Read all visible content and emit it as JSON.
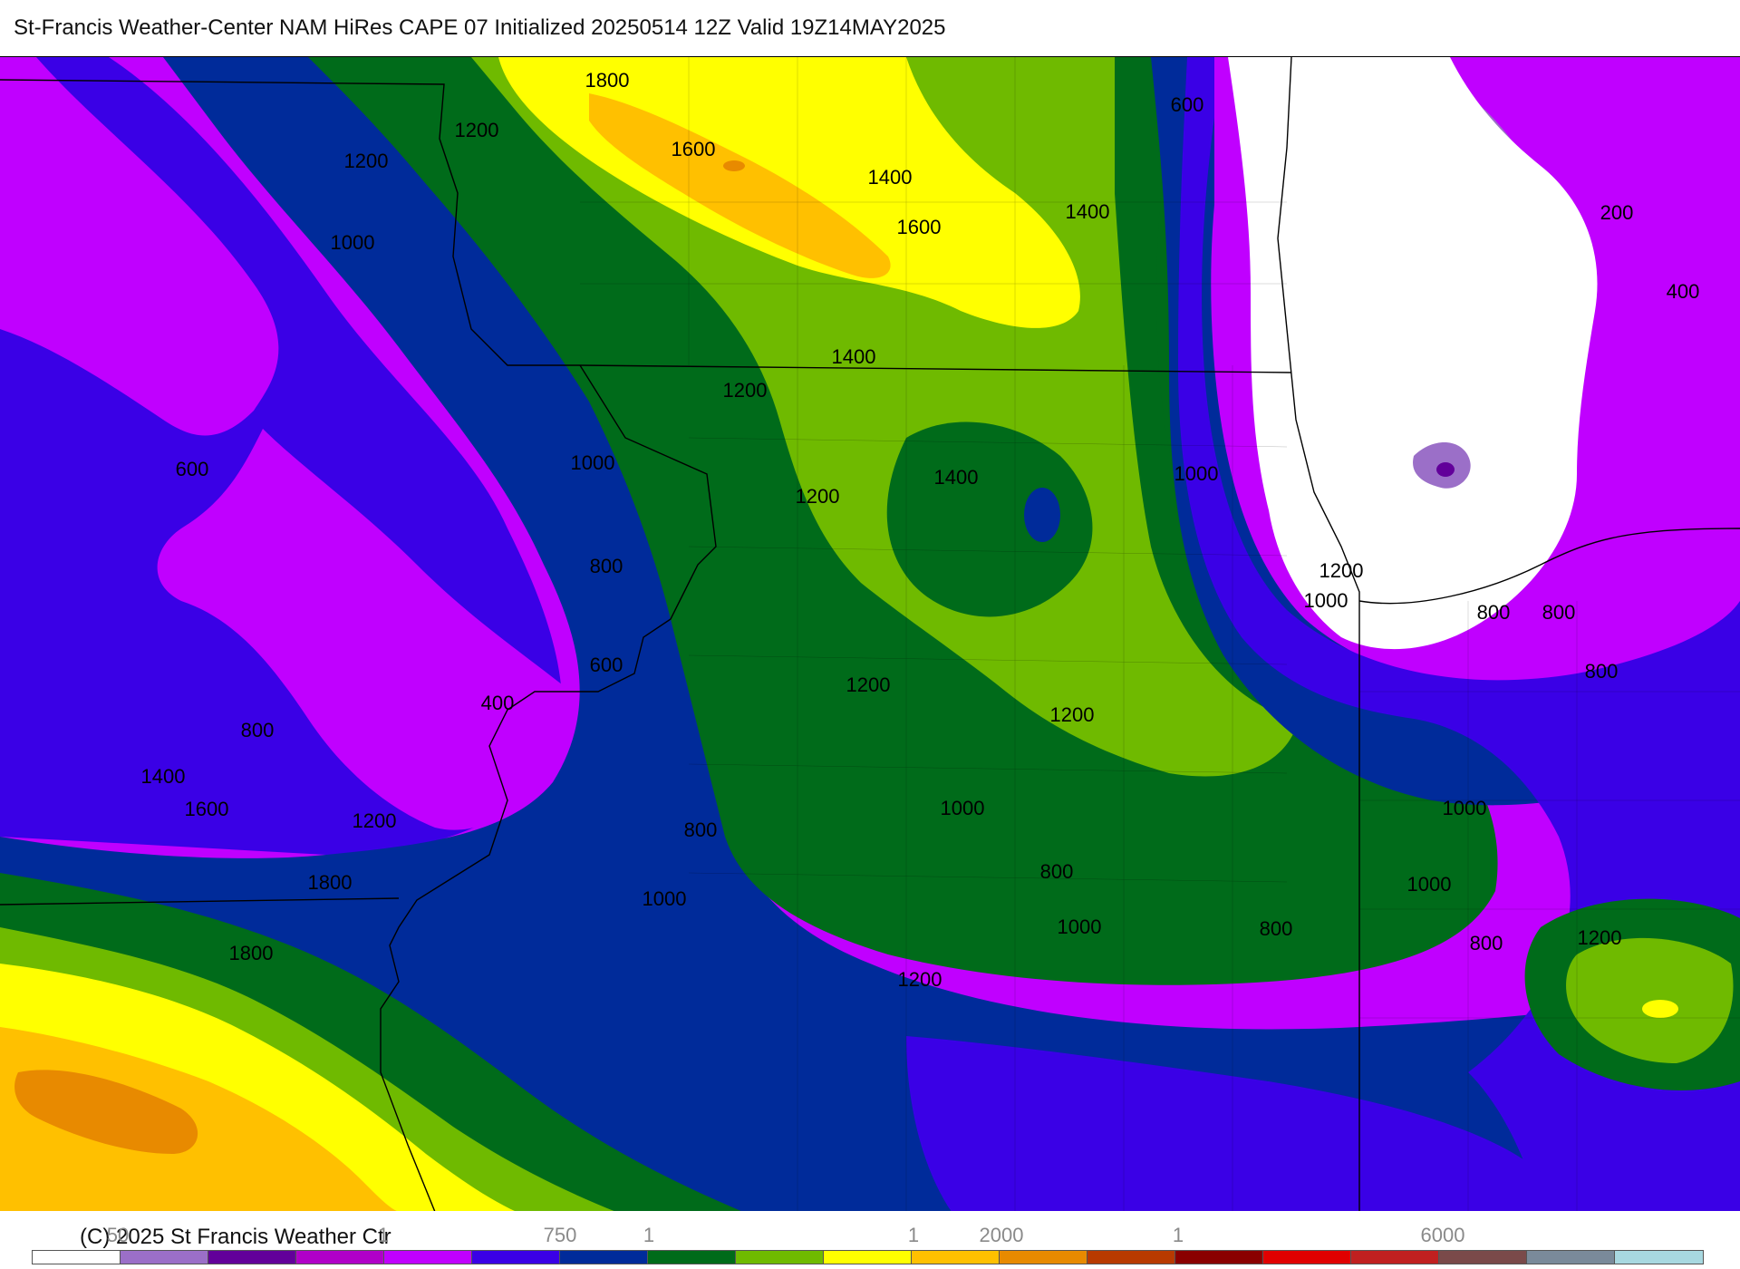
{
  "header": {
    "title": "St-Francis Weather-Center NAM HiRes CAPE  07 Initialized 20250514 12Z Valid 19Z14MAY2025"
  },
  "footer": {
    "copyright": "(C) 2025 St Francis Weather Ctr",
    "tick_labels": [
      "50",
      "1",
      "750",
      "1",
      "1",
      "2000",
      "1",
      "6000"
    ]
  },
  "legend": {
    "colors": [
      "#ffffff",
      "#9b6fc8",
      "#62009a",
      "#b000c8",
      "#c000ff",
      "#3a00e6",
      "#002b9a",
      "#006b1a",
      "#6fba00",
      "#ffff00",
      "#ffc000",
      "#e88a00",
      "#b83a00",
      "#8a0000",
      "#e00000",
      "#c02020",
      "#7a4a4a",
      "#7a8a9a",
      "#a8d8e0"
    ]
  },
  "map": {
    "contour_labels": [
      "1800",
      "1600",
      "1400",
      "1600",
      "1400",
      "600",
      "1200",
      "1200",
      "1000",
      "1400",
      "1200",
      "1000",
      "600",
      "1200",
      "1400",
      "1000",
      "800",
      "1200",
      "1000",
      "800",
      "600",
      "1200",
      "1200",
      "400",
      "800",
      "1400",
      "1600",
      "1200",
      "800",
      "1000",
      "1000",
      "800",
      "1800",
      "1000",
      "1000",
      "800",
      "1800",
      "1200",
      "1000",
      "800",
      "200",
      "400",
      "800",
      "800",
      "1200"
    ]
  }
}
